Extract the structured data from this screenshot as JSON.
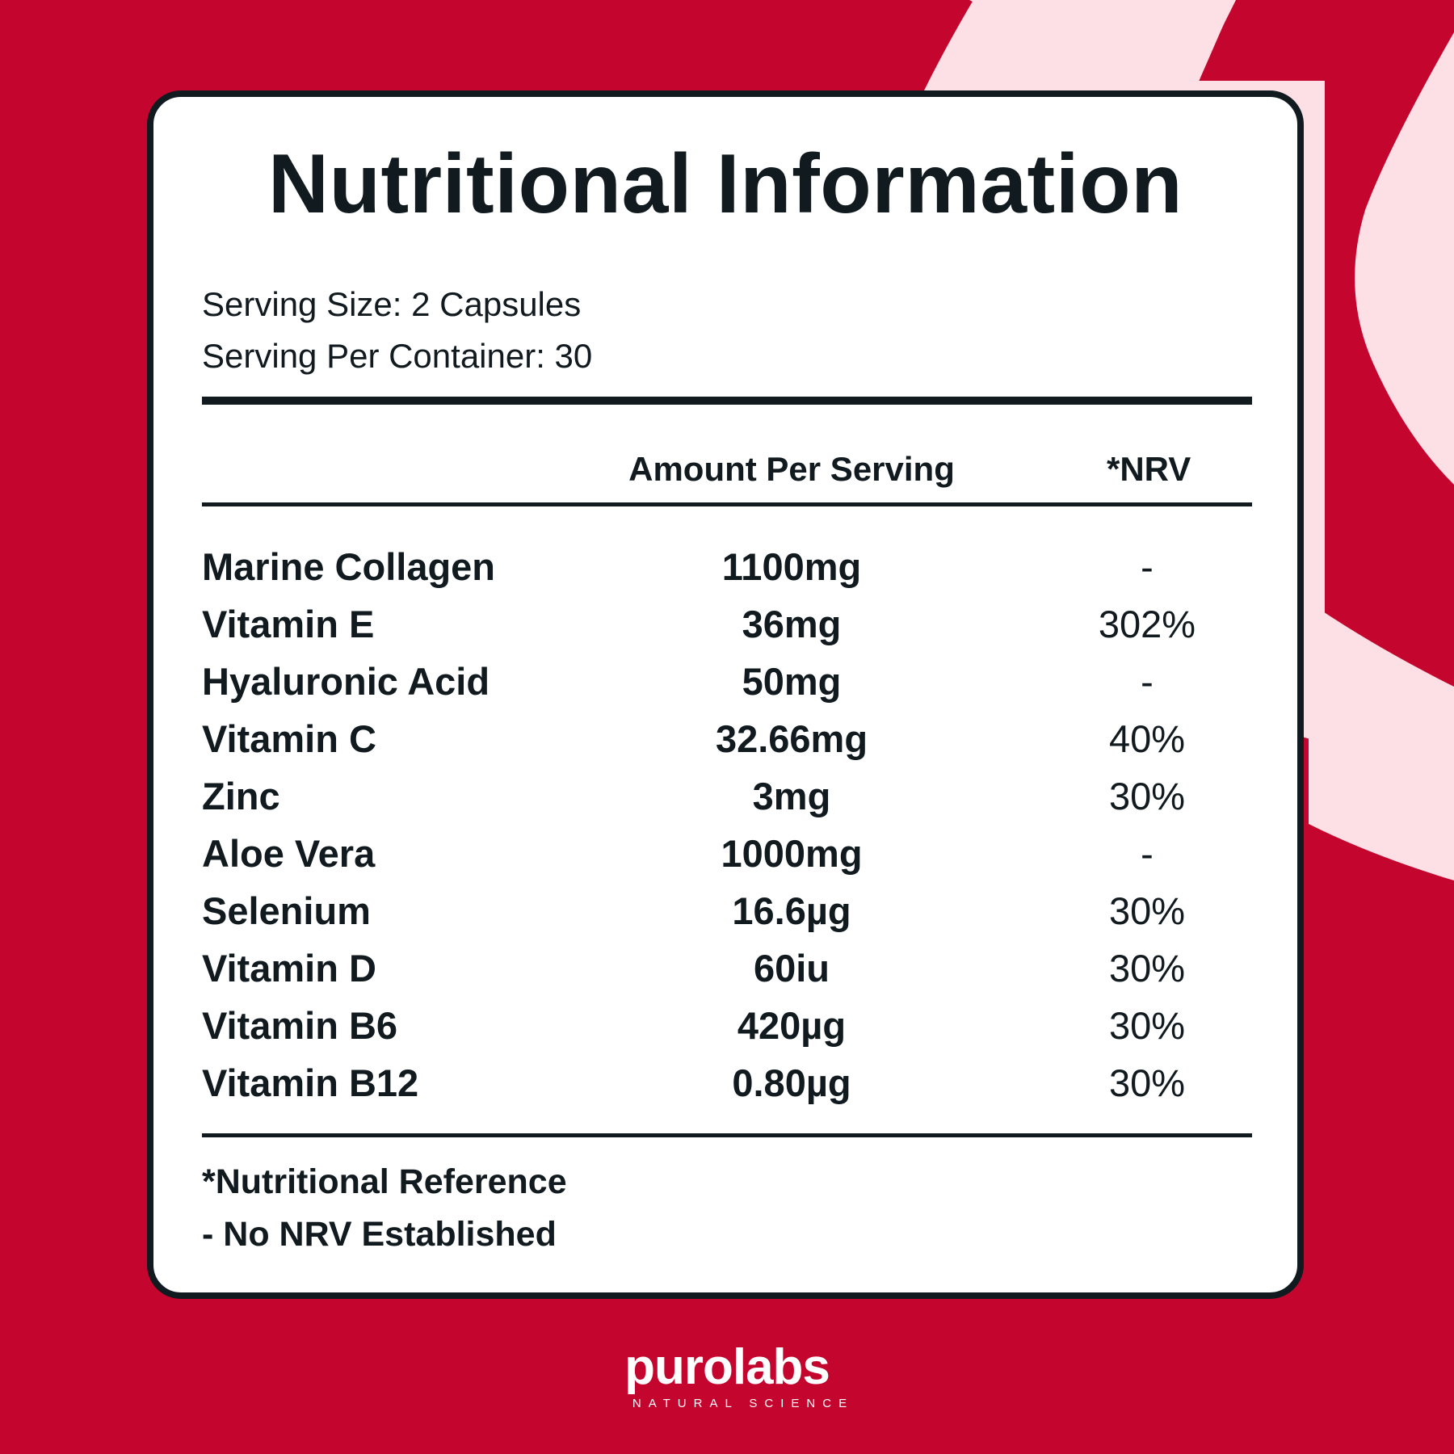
{
  "colors": {
    "background": "#c4062e",
    "accent_shape": "#fde0e5",
    "card": "#ffffff",
    "ink": "#111a1f"
  },
  "title": "Nutritional Information",
  "serving": {
    "size": "Serving Size: 2 Capsules",
    "per_container": "Serving Per Container: 30"
  },
  "table": {
    "headers": {
      "amount": "Amount Per Serving",
      "nrv": "*NRV"
    },
    "rows": [
      {
        "name": "Marine Collagen",
        "amount": "1100mg",
        "nrv": "-"
      },
      {
        "name": "Vitamin E",
        "amount": "36mg",
        "nrv": "302%"
      },
      {
        "name": "Hyaluronic Acid",
        "amount": "50mg",
        "nrv": "-"
      },
      {
        "name": "Vitamin C",
        "amount": "32.66mg",
        "nrv": "40%"
      },
      {
        "name": "Zinc",
        "amount": "3mg",
        "nrv": "30%"
      },
      {
        "name": "Aloe Vera",
        "amount": "1000mg",
        "nrv": "-"
      },
      {
        "name": "Selenium",
        "amount": "16.6µg",
        "nrv": "30%"
      },
      {
        "name": "Vitamin D",
        "amount": "60iu",
        "nrv": "30%"
      },
      {
        "name": "Vitamin B6",
        "amount": "420µg",
        "nrv": "30%"
      },
      {
        "name": "Vitamin B12",
        "amount": "0.80µg",
        "nrv": "30%"
      }
    ]
  },
  "footnotes": {
    "nrv_definition": "*Nutritional Reference",
    "no_nrv": "- No NRV Established"
  },
  "brand": {
    "name": "purolabs",
    "tagline": "NATURAL SCIENCE"
  }
}
